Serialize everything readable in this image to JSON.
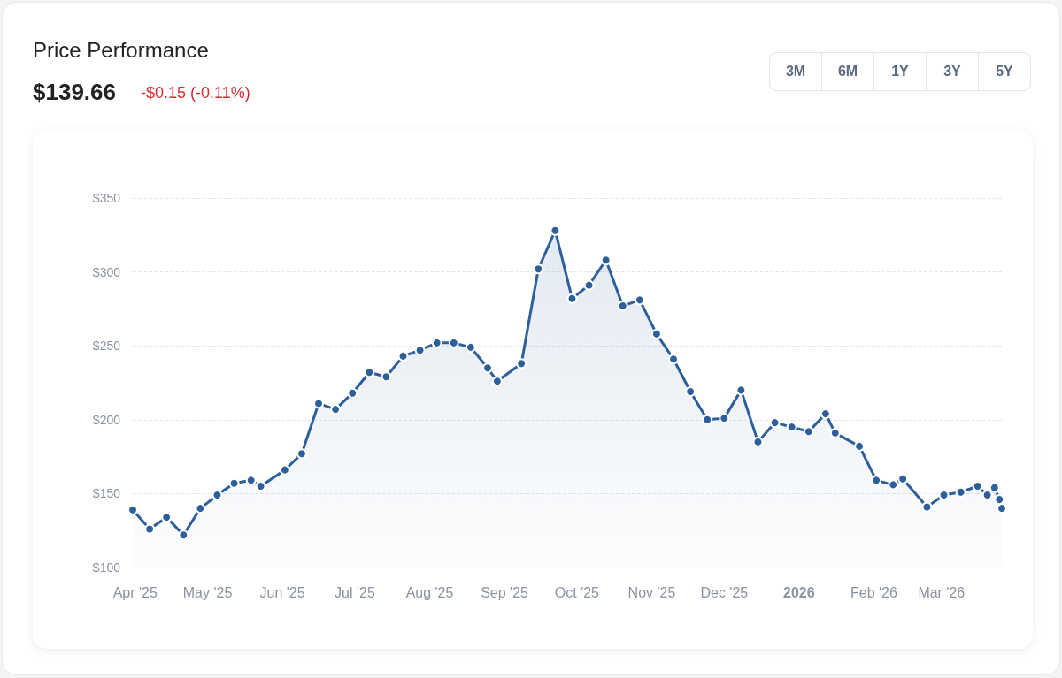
{
  "chart_data": {
    "type": "area",
    "title": "Price Performance",
    "subtitle": "$139.66",
    "annotations": [
      "-$0.15 (-0.11%)",
      "3M",
      "6M",
      "1Y",
      "3Y",
      "5Y"
    ],
    "x": [
      "2025-03-31",
      "2025-04-07",
      "2025-04-14",
      "2025-04-21",
      "2025-04-28",
      "2025-05-05",
      "2025-05-12",
      "2025-05-19",
      "2025-05-23",
      "2025-06-02",
      "2025-06-09",
      "2025-06-16",
      "2025-06-23",
      "2025-06-30",
      "2025-07-07",
      "2025-07-14",
      "2025-07-21",
      "2025-07-28",
      "2025-08-04",
      "2025-08-11",
      "2025-08-18",
      "2025-08-25",
      "2025-08-29",
      "2025-09-08",
      "2025-09-15",
      "2025-09-22",
      "2025-09-29",
      "2025-10-06",
      "2025-10-13",
      "2025-10-20",
      "2025-10-27",
      "2025-11-03",
      "2025-11-10",
      "2025-11-17",
      "2025-11-24",
      "2025-12-01",
      "2025-12-08",
      "2025-12-15",
      "2025-12-22",
      "2025-12-29",
      "2026-01-05",
      "2026-01-12",
      "2026-01-16",
      "2026-01-26",
      "2026-02-02",
      "2026-02-09",
      "2026-02-13",
      "2026-02-23",
      "2026-03-02",
      "2026-03-09",
      "2026-03-16",
      "2026-03-20",
      "2026-03-23",
      "2026-03-25",
      "2026-03-26"
    ],
    "series": [
      {
        "color": "#2d5f9a",
        "values": [
          139,
          126,
          134,
          122,
          140,
          149,
          157,
          159,
          155,
          166,
          177,
          211,
          207,
          218,
          232,
          229,
          243,
          247,
          252,
          252,
          249,
          235,
          226,
          238,
          302,
          328,
          282,
          291,
          308,
          277,
          281,
          258,
          241,
          219,
          200,
          201,
          220,
          185,
          198,
          195,
          192,
          204,
          191,
          182,
          159,
          156,
          160,
          141,
          149,
          151,
          155,
          149,
          154,
          146,
          140
        ]
      }
    ],
    "xlim": [
      "2025-03-31",
      "2026-03-26"
    ],
    "xticks": [
      {
        "value": "2025-04-01",
        "label": "Apr '25"
      },
      {
        "value": "2025-05-01",
        "label": "May '25"
      },
      {
        "value": "2025-06-01",
        "label": "Jun '25"
      },
      {
        "value": "2025-07-01",
        "label": "Jul '25"
      },
      {
        "value": "2025-08-01",
        "label": "Aug '25"
      },
      {
        "value": "2025-09-01",
        "label": "Sep '25"
      },
      {
        "value": "2025-10-01",
        "label": "Oct '25"
      },
      {
        "value": "2025-11-01",
        "label": "Nov '25"
      },
      {
        "value": "2025-12-01",
        "label": "Dec '25"
      },
      {
        "value": "2026-01-01",
        "label": "2026"
      },
      {
        "value": "2026-02-01",
        "label": "Feb '26"
      },
      {
        "value": "2026-03-01",
        "label": "Mar '26"
      }
    ],
    "ylim": [
      100,
      350
    ],
    "yticks": [
      {
        "value": 100,
        "label": "$100"
      },
      {
        "value": 150,
        "label": "$150"
      },
      {
        "value": 200,
        "label": "$200"
      },
      {
        "value": 250,
        "label": "$250"
      },
      {
        "value": 300,
        "label": "$300"
      },
      {
        "value": 350,
        "label": "$350"
      }
    ],
    "grid": "y",
    "marker": "circle",
    "line_style": "solid"
  }
}
